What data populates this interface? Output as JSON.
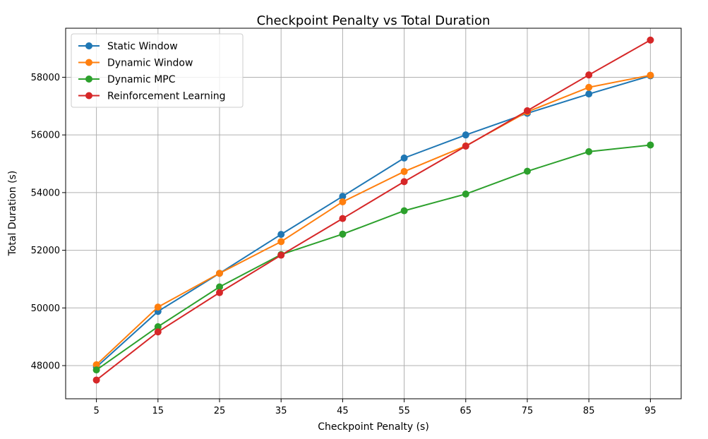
{
  "chart_data": {
    "type": "line",
    "title": "Checkpoint Penalty vs Total Duration",
    "xlabel": "Checkpoint Penalty (s)",
    "ylabel": "Total Duration (s)",
    "x": [
      5,
      15,
      25,
      35,
      45,
      55,
      65,
      75,
      85,
      95
    ],
    "xlim": [
      0,
      100
    ],
    "ylim": [
      46850,
      59700
    ],
    "yticks": [
      48000,
      50000,
      52000,
      54000,
      56000,
      58000
    ],
    "grid": true,
    "legend_position": "top-left",
    "series": [
      {
        "name": "Static Window",
        "color": "#1f77b4",
        "values": [
          47950,
          49880,
          51200,
          52550,
          53870,
          55200,
          56000,
          56750,
          57420,
          58050
        ]
      },
      {
        "name": "Dynamic Window",
        "color": "#ff7f0e",
        "values": [
          48030,
          50030,
          51200,
          52300,
          53680,
          54730,
          55620,
          56800,
          57650,
          58070
        ]
      },
      {
        "name": "Dynamic MPC",
        "color": "#2ca02c",
        "values": [
          47850,
          49350,
          50730,
          51850,
          52560,
          53370,
          53950,
          54740,
          55420,
          55650
        ]
      },
      {
        "name": "Reinforcement Learning",
        "color": "#d62728",
        "values": [
          47500,
          49170,
          50530,
          51830,
          53100,
          54380,
          55610,
          56840,
          58080,
          59290
        ]
      }
    ]
  }
}
